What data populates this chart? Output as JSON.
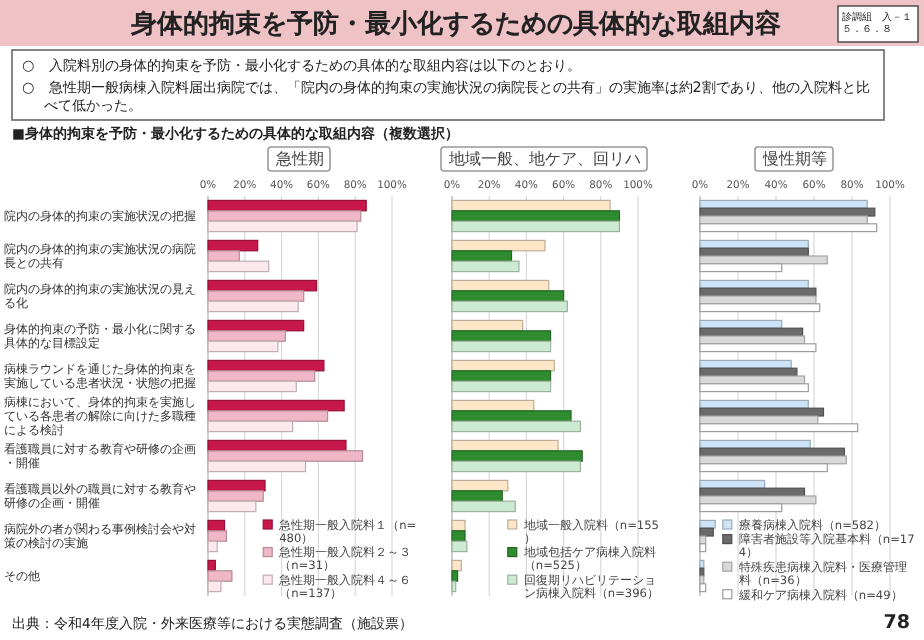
{
  "chart_data": [
    {
      "type": "bar",
      "orientation": "horizontal",
      "title": "急性期",
      "annotations": [
        "身体的拘束を予防・最小化するための具体的な取組内容",
        "診調組　入－１５．６．８",
        "○　入院料別の身体的拘束を予防・最小化するための具体的な取組内容は以下のとおり。",
        "○　急性期一般病棟入院料届出病院では、「院内の身体的拘束の実施状況の病院長との共有」の実施率は約2割であり、他の入院料と比べて低かった。",
        "■身体的拘束を予防・最小化するための具体的な取組内容（複数選択）",
        "出典：令和4年度入院・外来医療等における実態調査（施設票）",
        "78"
      ],
      "categories": [
        "院内の身体的拘束の実施状況の把握",
        "院内の身体的拘束の実施状況の病院長との共有",
        "院内の身体的拘束の実施状況の見える化",
        "身体的拘束の予防・最小化に関する具体的な目標設定",
        "病棟ラウンドを通じた身体的拘束を実施している患者状況・状態の把握",
        "病棟において、身体的拘束を実施している各患者の解除に向けた多職種による検討",
        "看護職員に対する教育や研修の企画・開催",
        "看護職員以外の職員に対する教育や研修の企画・開催",
        "病院外の者が関わる事例検討会や対策の検討の実施",
        "その他"
      ],
      "series": [
        {
          "name": "急性期一般入院料１（n=480）",
          "color": "#c8174a",
          "values": [
            86,
            27,
            59,
            52,
            63,
            74,
            75,
            31,
            9,
            4
          ]
        },
        {
          "name": "急性期一般入院料２～３（n=31）",
          "color": "#f0b8c6",
          "values": [
            83,
            17,
            52,
            42,
            58,
            65,
            84,
            30,
            10,
            13
          ]
        },
        {
          "name": "急性期一般入院料４～６（n=137）",
          "color": "#fde8ee",
          "values": [
            81,
            33,
            49,
            38,
            48,
            46,
            53,
            26,
            5,
            7
          ]
        }
      ],
      "xlim": [
        0,
        100
      ],
      "xticks": [
        {
          "value": 0,
          "label": "0%"
        },
        {
          "value": 20,
          "label": "20%"
        },
        {
          "value": 40,
          "label": "40%"
        },
        {
          "value": 60,
          "label": "60%"
        },
        {
          "value": 80,
          "label": "80%"
        },
        {
          "value": 100,
          "label": "100%"
        }
      ],
      "grid": "x",
      "legend": "bottom right"
    },
    {
      "type": "bar",
      "orientation": "horizontal",
      "title": "地域一般、地ケア、回リハ",
      "tick_labels": "x",
      "categories": [
        null,
        null,
        null,
        null,
        null,
        null,
        null,
        null,
        null,
        null
      ],
      "series": [
        {
          "name": "地域一般入院料（n=155）",
          "color": "#fde7c8",
          "values": [
            85,
            50,
            52,
            38,
            55,
            44,
            57,
            30,
            7,
            5
          ]
        },
        {
          "name": "地域包括ケア病棟入院料（n=525）",
          "color": "#2e8b2e",
          "values": [
            90,
            32,
            60,
            53,
            53,
            64,
            70,
            27,
            7,
            3
          ]
        },
        {
          "name": "回復期リハビリテーション病棟入院料（n=396）",
          "color": "#cdebd0",
          "values": [
            90,
            36,
            62,
            53,
            53,
            69,
            69,
            34,
            8,
            2
          ]
        }
      ],
      "xlim": [
        0,
        100
      ],
      "xticks": [
        {
          "value": 0,
          "label": "0%"
        },
        {
          "value": 20,
          "label": "20%"
        },
        {
          "value": 40,
          "label": "40%"
        },
        {
          "value": 60,
          "label": "60%"
        },
        {
          "value": 80,
          "label": "80%"
        },
        {
          "value": 100,
          "label": "100%"
        }
      ],
      "grid": "x",
      "legend": "bottom right"
    },
    {
      "type": "bar",
      "orientation": "horizontal",
      "title": "慢性期等",
      "tick_labels": "x",
      "categories": [
        null,
        null,
        null,
        null,
        null,
        null,
        null,
        null,
        null,
        null
      ],
      "series": [
        {
          "name": "療養病棟入院料（n=582）",
          "color": "#cfe3f7",
          "values": [
            88,
            57,
            57,
            43,
            48,
            57,
            58,
            34,
            8,
            2
          ]
        },
        {
          "name": "障害者施設等入院基本料（n=174）",
          "color": "#6b6b6b",
          "values": [
            92,
            57,
            61,
            54,
            51,
            65,
            76,
            55,
            7,
            2
          ]
        },
        {
          "name": "特殊疾患病棟入院料・医療管理料（n=36）",
          "color": "#d9d9d9",
          "values": [
            88,
            67,
            61,
            55,
            55,
            62,
            77,
            61,
            3,
            2
          ]
        },
        {
          "name": "緩和ケア病棟入院料（n=49）",
          "color": "#ffffff",
          "values": [
            93,
            43,
            63,
            61,
            57,
            83,
            67,
            43,
            3,
            3
          ]
        }
      ],
      "xlim": [
        0,
        100
      ],
      "xticks": [
        {
          "value": 0,
          "label": "0%"
        },
        {
          "value": 20,
          "label": "20%"
        },
        {
          "value": 40,
          "label": "40%"
        },
        {
          "value": 60,
          "label": "60%"
        },
        {
          "value": 80,
          "label": "80%"
        },
        {
          "value": 100,
          "label": "100%"
        }
      ],
      "grid": "x",
      "legend": "bottom"
    }
  ]
}
